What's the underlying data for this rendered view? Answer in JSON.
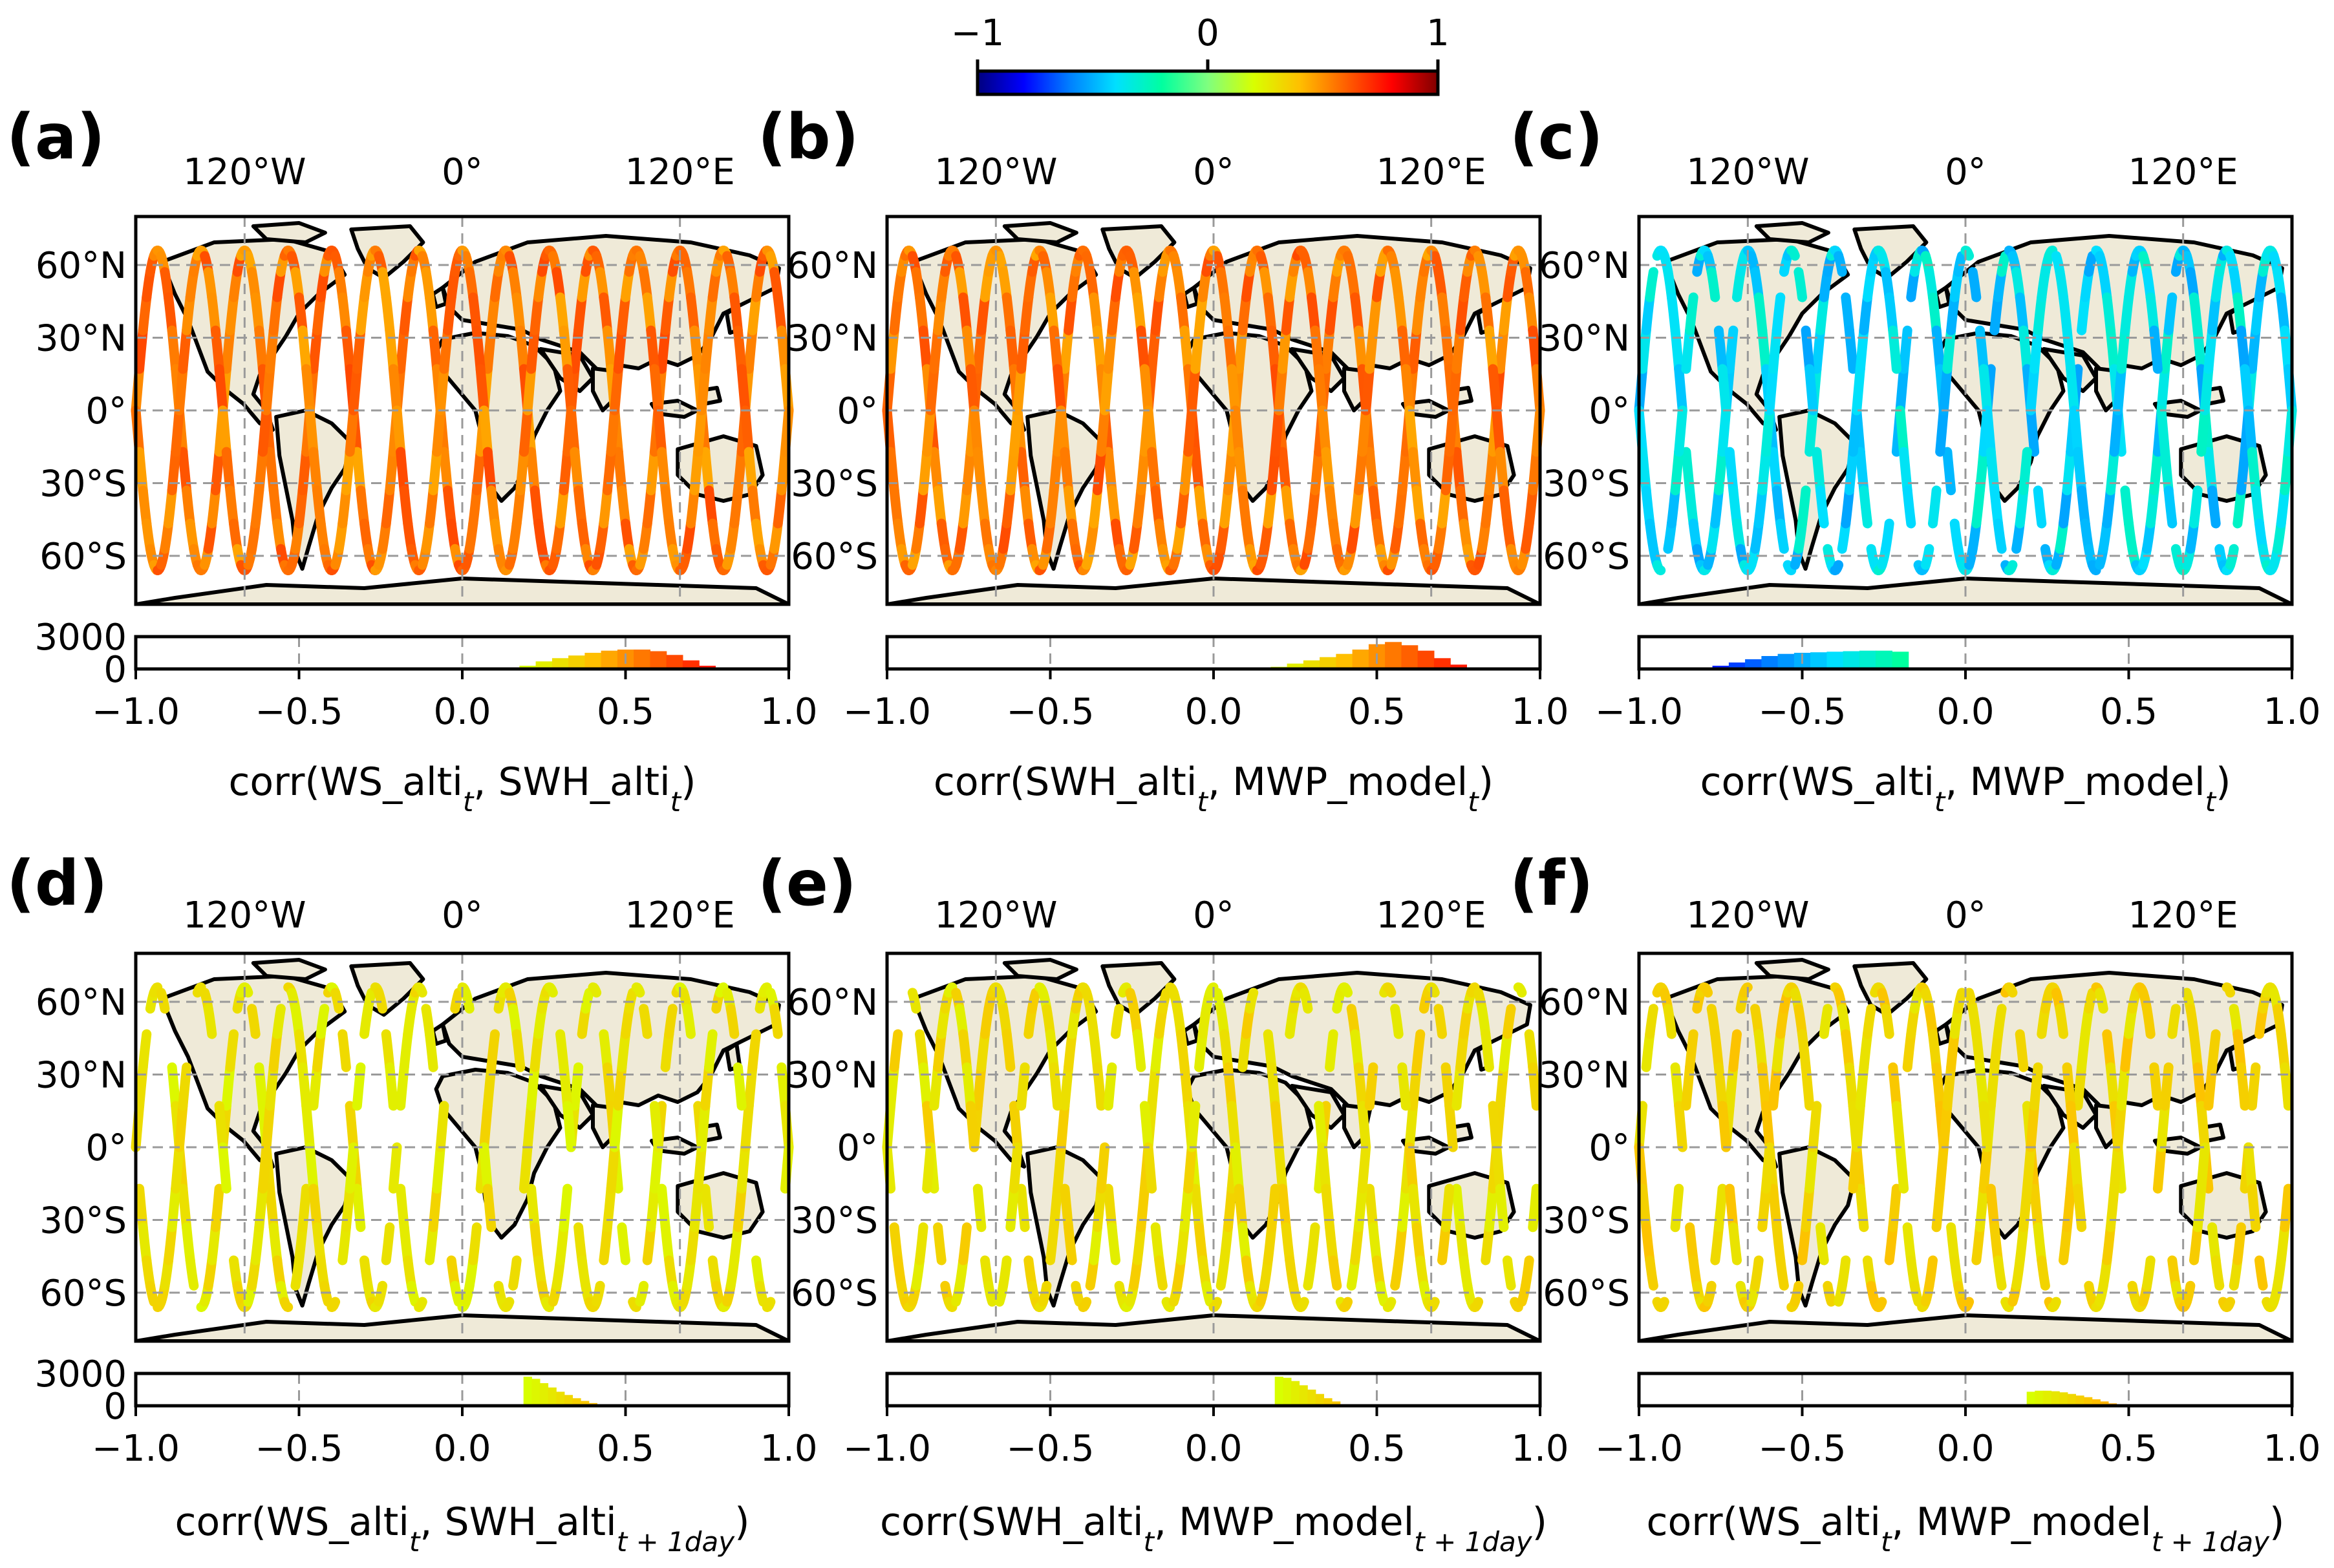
{
  "colorbar": {
    "ticks": [
      "−1",
      "0",
      "1"
    ],
    "range": [
      -1,
      1
    ],
    "colormap": "jet",
    "stops": [
      "#00007f",
      "#0000ff",
      "#007fff",
      "#00e0ff",
      "#00ffa0",
      "#7fff7f",
      "#d8ff00",
      "#ffbf00",
      "#ff6000",
      "#ff0000",
      "#7f0000"
    ]
  },
  "map_axes": {
    "lon_ticks": [
      "120°W",
      "0°",
      "120°E"
    ],
    "lat_ticks": [
      "60°N",
      "30°N",
      "0°",
      "30°S",
      "60°S"
    ],
    "lon_tick_values": [
      -120,
      0,
      120
    ],
    "lat_tick_values": [
      60,
      30,
      0,
      -30,
      -60
    ],
    "lon_range": [
      -180,
      180
    ],
    "lat_range": [
      -80,
      80
    ]
  },
  "hist_axes": {
    "xticks": [
      "−1.0",
      "−0.5",
      "0.0",
      "0.5",
      "1.0"
    ],
    "xtick_values": [
      -1.0,
      -0.5,
      0.0,
      0.5,
      1.0
    ],
    "yticks": [
      "3000",
      "0"
    ],
    "ylim": [
      0,
      3000
    ],
    "xlim": [
      -1.0,
      1.0
    ]
  },
  "chart_data": [
    {
      "type": "map+histogram",
      "letter": "(a)",
      "title_html": "corr(WS_alti<tspan baseline-shift=\"sub\" font-size=\"42\" font-style=\"italic\">t</tspan>, SWH_alti<tspan baseline-shift=\"sub\" font-size=\"42\" font-style=\"italic\">t</tspan>)",
      "xlabel": "corr(WS_alti_t, SWH_alti_t)",
      "track_color_value": 0.55,
      "track_value_spread": 0.2,
      "coverage": 1.0,
      "histogram": {
        "bins": [
          0.2,
          0.25,
          0.3,
          0.35,
          0.4,
          0.45,
          0.5,
          0.55,
          0.6,
          0.65,
          0.7,
          0.75,
          0.8
        ],
        "counts": [
          300,
          700,
          1000,
          1250,
          1500,
          1700,
          1800,
          1800,
          1650,
          1300,
          800,
          300,
          50
        ]
      }
    },
    {
      "type": "map+histogram",
      "letter": "(b)",
      "title_html": "corr(SWH_alti<tspan baseline-shift=\"sub\" font-size=\"42\" font-style=\"italic\">t</tspan>, MWP_model<tspan baseline-shift=\"sub\" font-size=\"42\" font-style=\"italic\">t</tspan>)",
      "xlabel": "corr(SWH_alti_t, MWP_model_t)",
      "track_color_value": 0.55,
      "track_value_spread": 0.2,
      "coverage": 1.0,
      "histogram": {
        "bins": [
          0.2,
          0.25,
          0.3,
          0.35,
          0.4,
          0.45,
          0.5,
          0.55,
          0.6,
          0.65,
          0.7,
          0.75,
          0.8
        ],
        "counts": [
          200,
          500,
          800,
          1100,
          1400,
          1800,
          2300,
          2500,
          2200,
          1700,
          1000,
          400,
          50
        ]
      }
    },
    {
      "type": "map+histogram",
      "letter": "(c)",
      "title_html": "corr(WS_alti<tspan baseline-shift=\"sub\" font-size=\"42\" font-style=\"italic\">t</tspan>, MWP_model<tspan baseline-shift=\"sub\" font-size=\"42\" font-style=\"italic\">t</tspan>)",
      "xlabel": "corr(WS_alti_t, MWP_model_t)",
      "track_color_value": -0.4,
      "track_value_spread": 0.25,
      "coverage": 0.85,
      "histogram": {
        "bins": [
          -0.8,
          -0.75,
          -0.7,
          -0.65,
          -0.6,
          -0.55,
          -0.5,
          -0.45,
          -0.4,
          -0.35,
          -0.3,
          -0.25,
          -0.2
        ],
        "counts": [
          100,
          300,
          600,
          900,
          1200,
          1400,
          1500,
          1550,
          1600,
          1650,
          1700,
          1700,
          1600
        ]
      }
    },
    {
      "type": "map+histogram",
      "letter": "(d)",
      "title_html": "corr(WS_alti<tspan baseline-shift=\"sub\" font-size=\"42\" font-style=\"italic\">t</tspan>, SWH_alti<tspan baseline-shift=\"sub\" font-size=\"42\" font-style=\"italic\">t + 1day</tspan>)",
      "xlabel": "corr(WS_alti_t, SWH_alti_t+1day)",
      "track_color_value": 0.28,
      "track_value_spread": 0.12,
      "coverage": 0.75,
      "histogram": {
        "bins": [
          0.2,
          0.225,
          0.25,
          0.275,
          0.3,
          0.325,
          0.35,
          0.375,
          0.4,
          0.425,
          0.45,
          0.475,
          0.5
        ],
        "counts": [
          2700,
          2500,
          2100,
          1700,
          1300,
          1000,
          700,
          450,
          250,
          120,
          50,
          20,
          5
        ]
      }
    },
    {
      "type": "map+histogram",
      "letter": "(e)",
      "title_html": "corr(SWH_alti<tspan baseline-shift=\"sub\" font-size=\"42\" font-style=\"italic\">t</tspan>, MWP_model<tspan baseline-shift=\"sub\" font-size=\"42\" font-style=\"italic\">t + 1day</tspan>)",
      "xlabel": "corr(SWH_alti_t, MWP_model_t+1day)",
      "track_color_value": 0.3,
      "track_value_spread": 0.12,
      "coverage": 0.7,
      "histogram": {
        "bins": [
          0.2,
          0.225,
          0.25,
          0.275,
          0.3,
          0.325,
          0.35,
          0.375,
          0.4,
          0.425,
          0.45
        ],
        "counts": [
          2700,
          2600,
          2300,
          1900,
          1500,
          1100,
          700,
          400,
          150,
          40,
          5
        ]
      }
    },
    {
      "type": "map+histogram",
      "letter": "(f)",
      "title_html": "corr(WS_alti<tspan baseline-shift=\"sub\" font-size=\"42\" font-style=\"italic\">t</tspan>, MWP_model<tspan baseline-shift=\"sub\" font-size=\"42\" font-style=\"italic\">t + 1day</tspan>)",
      "xlabel": "corr(WS_alti_t, MWP_model_t+1day)",
      "track_color_value": 0.33,
      "track_value_spread": 0.12,
      "coverage": 0.72,
      "histogram": {
        "bins": [
          0.2,
          0.225,
          0.25,
          0.275,
          0.3,
          0.325,
          0.35,
          0.375,
          0.4,
          0.425,
          0.45,
          0.475,
          0.5
        ],
        "counts": [
          1300,
          1400,
          1400,
          1350,
          1250,
          1100,
          950,
          800,
          600,
          400,
          220,
          80,
          10
        ]
      }
    }
  ]
}
